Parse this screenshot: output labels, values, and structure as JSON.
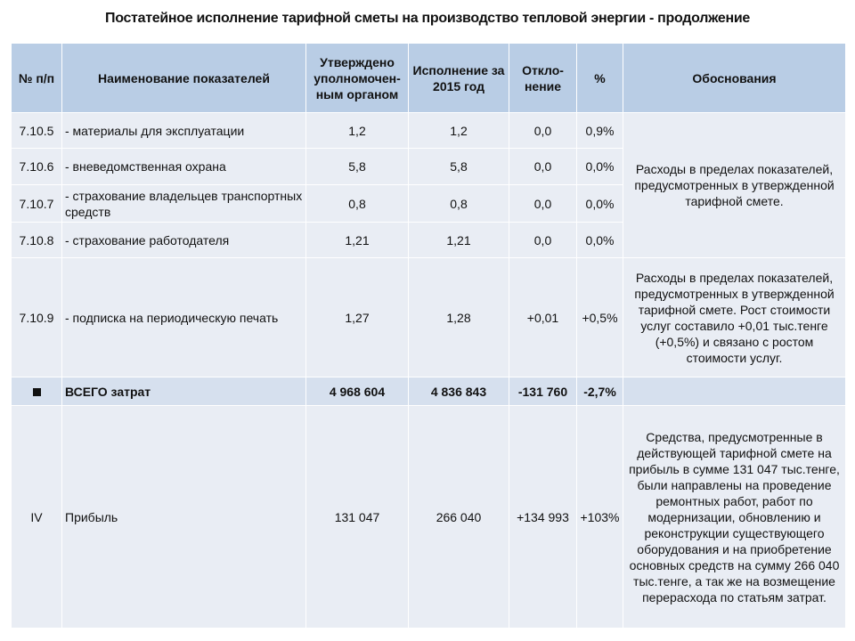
{
  "title": "Постатейное исполнение тарифной сметы на производство тепловой энергии - продолжение",
  "headers": {
    "num": "№ п/п",
    "name": "Наименование показателей",
    "approved": "Утверждено уполномочен-ным органом",
    "execution": "Исполнение за 2015 год",
    "deviation": "Откло-нение",
    "percent": "%",
    "justification": "Обоснования"
  },
  "rows": [
    {
      "num": "7.10.5",
      "name": "- материалы для эксплуатации",
      "approved": "1,2",
      "execution": "1,2",
      "deviation": "0,0",
      "percent": "0,9%"
    },
    {
      "num": "7.10.6",
      "name": "- вневедомственная охрана",
      "approved": "5,8",
      "execution": "5,8",
      "deviation": "0,0",
      "percent": "0,0%"
    },
    {
      "num": "7.10.7",
      "name": "- страхование владельцев транспортных средств",
      "approved": "0,8",
      "execution": "0,8",
      "deviation": "0,0",
      "percent": "0,0%"
    },
    {
      "num": "7.10.8",
      "name": "- страхование работодателя",
      "approved": "1,21",
      "execution": "1,21",
      "deviation": "0,0",
      "percent": "0,0%"
    },
    {
      "num": "7.10.9",
      "name": "- подписка на периодическую печать",
      "approved": "1,27",
      "execution": "1,28",
      "deviation": "+0,01",
      "percent": "+0,5%"
    }
  ],
  "justification_group": "Расходы в пределах показателей, предусмотренных в утвержденной тарифной смете.",
  "justification_row9": "Расходы в пределах показателей, предусмотренных в утвержденной тарифной смете. Рост стоимости услуг составило +0,01 тыс.тенге (+0,5%) и связано с ростом стоимости услуг.",
  "total": {
    "name": "ВСЕГО затрат",
    "approved": "4 968 604",
    "execution": "4 836 843",
    "deviation": "-131 760",
    "percent": "-2,7%"
  },
  "profit": {
    "num": "IV",
    "name": "Прибыль",
    "approved": "131 047",
    "execution": "266 040",
    "deviation": "+134 993",
    "percent": "+103%",
    "justification": "Средства, предусмотренные в действующей тарифной смете на прибыль в сумме 131 047 тыс.тенге, были направлены на проведение ремонтных работ, работ по модернизации, обновлению и реконструкции существующего оборудования и на приобретение основных средств на сумму 266 040 тыс.тенге, а так же на возмещение перерасхода по статьям затрат."
  }
}
